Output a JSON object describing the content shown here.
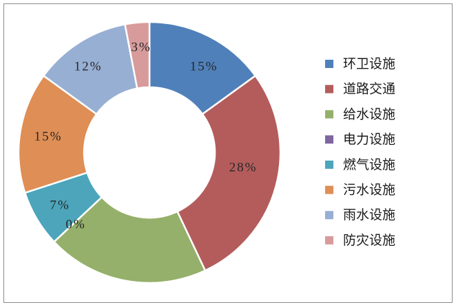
{
  "chart_data": {
    "type": "pie",
    "donut": true,
    "categories": [
      "环卫设施",
      "道路交通",
      "给水设施",
      "电力设施",
      "燃气设施",
      "污水设施",
      "雨水设施",
      "防灾设施"
    ],
    "values": [
      15,
      28,
      20,
      0,
      7,
      15,
      12,
      3
    ],
    "data_labels": [
      "15%",
      "28%",
      "",
      "0%",
      "7%",
      "15%",
      "12%",
      "3%"
    ],
    "colors": [
      "#4F80BA",
      "#B45C5C",
      "#95B06A",
      "#8066A1",
      "#4CA5BB",
      "#DF8E55",
      "#98AFD4",
      "#D89B9C"
    ],
    "legend_position": "right",
    "start": "top",
    "direction": "clockwise"
  }
}
